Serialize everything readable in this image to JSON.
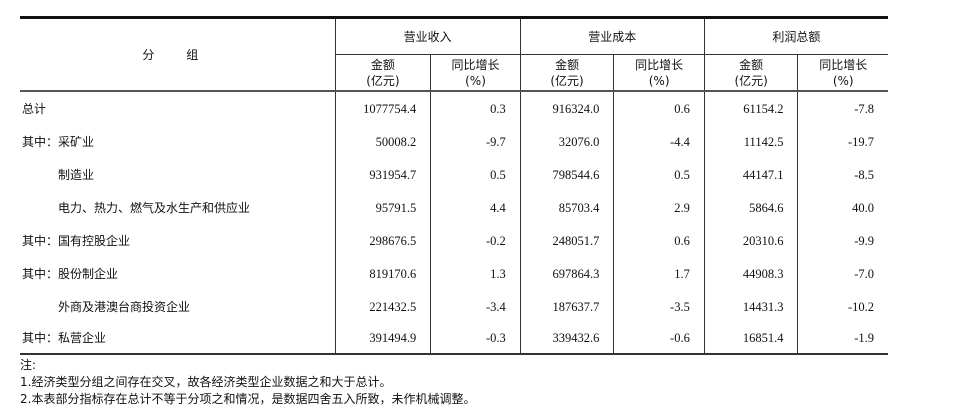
{
  "header": {
    "group": "分 组",
    "groups": [
      "营业收入",
      "营业成本",
      "利润总额"
    ],
    "amount": "金额",
    "amount_unit": "(亿元)",
    "growth": "同比增长",
    "growth_unit": "(%)"
  },
  "rows": [
    {
      "name": "总计",
      "indent": false,
      "v": [
        "1077754.4",
        "0.3",
        "916324.0",
        "0.6",
        "61154.2",
        "-7.8"
      ]
    },
    {
      "name": "其中：采矿业",
      "indent": false,
      "v": [
        "50008.2",
        "-9.7",
        "32076.0",
        "-4.4",
        "11142.5",
        "-19.7"
      ]
    },
    {
      "name": "制造业",
      "indent": true,
      "v": [
        "931954.7",
        "0.5",
        "798544.6",
        "0.5",
        "44147.1",
        "-8.5"
      ]
    },
    {
      "name": "电力、热力、燃气及水生产和供应业",
      "indent": true,
      "v": [
        "95791.5",
        "4.4",
        "85703.4",
        "2.9",
        "5864.6",
        "40.0"
      ]
    },
    {
      "name": "其中：国有控股企业",
      "indent": false,
      "v": [
        "298676.5",
        "-0.2",
        "248051.7",
        "0.6",
        "20310.6",
        "-9.9"
      ]
    },
    {
      "name": "其中：股份制企业",
      "indent": false,
      "v": [
        "819170.6",
        "1.3",
        "697864.3",
        "1.7",
        "44908.3",
        "-7.0"
      ]
    },
    {
      "name": "外商及港澳台商投资企业",
      "indent": true,
      "v": [
        "221432.5",
        "-3.4",
        "187637.7",
        "-3.5",
        "14431.3",
        "-10.2"
      ]
    },
    {
      "name": "其中：私营企业",
      "indent": false,
      "v": [
        "391494.9",
        "-0.3",
        "339432.6",
        "-0.6",
        "16851.4",
        "-1.9"
      ]
    }
  ],
  "notes": [
    "注:",
    "1.经济类型分组之间存在交叉，故各经济类型企业数据之和大于总计。",
    "2.本表部分指标存在总计不等于分项之和情况，是数据四舍五入所致，未作机械调整。"
  ]
}
